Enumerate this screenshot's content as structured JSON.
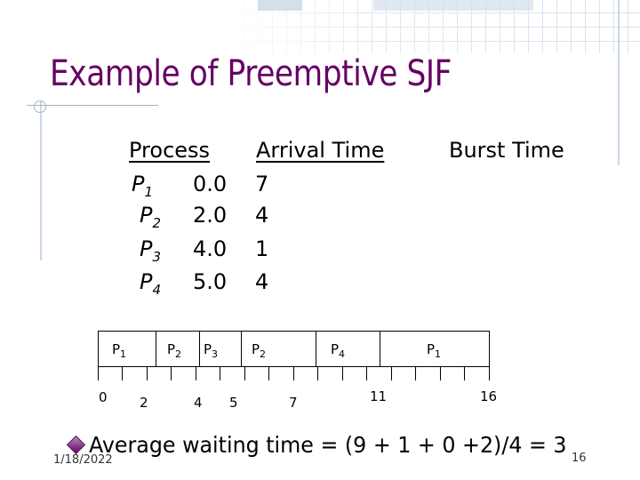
{
  "slide": {
    "title": "Example of Preemptive SJF",
    "table": {
      "headers": [
        "Process",
        "Arrival Time",
        "Burst Time"
      ],
      "rows": [
        {
          "process": "P",
          "sub": "1",
          "arrival": "0.0",
          "burst": "7"
        },
        {
          "process": "P",
          "sub": "2",
          "arrival": "2.0",
          "burst": "4"
        },
        {
          "process": "P",
          "sub": "3",
          "arrival": "4.0",
          "burst": "1"
        },
        {
          "process": "P",
          "sub": "4",
          "arrival": "5.0",
          "burst": "4"
        }
      ]
    },
    "gantt": {
      "segments": [
        {
          "process": "P",
          "sub": "1"
        },
        {
          "process": "P",
          "sub": "2"
        },
        {
          "process": "P",
          "sub": "3"
        },
        {
          "process": "P",
          "sub": "2"
        },
        {
          "process": "P",
          "sub": "4"
        },
        {
          "process": "P",
          "sub": "1"
        }
      ],
      "times": [
        "0",
        "2",
        "4",
        "5",
        "7",
        "11",
        "16"
      ]
    },
    "average_line": "Average waiting time = (9 + 1 + 0 +2)/4 = 3",
    "footer": {
      "date": "1/18/2022",
      "page": "16"
    }
  },
  "colors": {
    "title": "#660066",
    "bullet": "#660066",
    "grid": "#d7e3ee"
  }
}
